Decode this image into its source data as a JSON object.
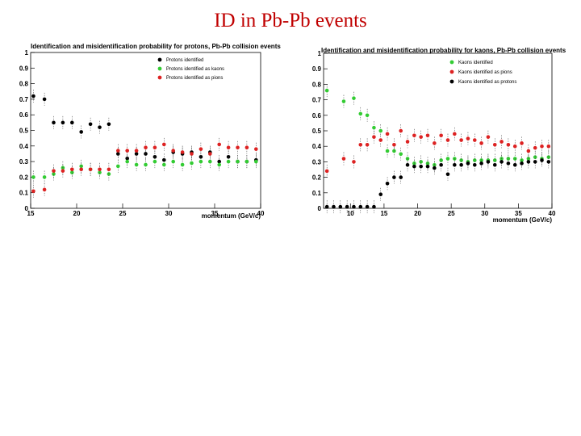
{
  "slide": {
    "title": "ID in  Pb-Pb events"
  },
  "chart_data": [
    {
      "type": "scatter",
      "title": "Identification and misidentification probability for protons, Pb-Pb collision events",
      "xlabel": "momentum (GeV/c)",
      "ylabel": "",
      "xlim": [
        15,
        40
      ],
      "ylim": [
        0,
        1
      ],
      "xticks": [
        15,
        20,
        25,
        30,
        35,
        40
      ],
      "yticks": [
        0,
        0.1,
        0.2,
        0.3,
        0.4,
        0.5,
        0.6,
        0.7,
        0.8,
        0.9,
        1
      ],
      "grid": false,
      "legend_position": "top-right",
      "series": [
        {
          "name": "Protons identified",
          "color": "#000000",
          "x": [
            15.3,
            16.5,
            17.5,
            18.5,
            19.5,
            20.5,
            21.5,
            22.5,
            23.5,
            24.5,
            25.5,
            26.5,
            27.5,
            28.5,
            29.5,
            30.5,
            31.5,
            32.5,
            33.5,
            34.5,
            35.5,
            36.5,
            37.5,
            38.5,
            39.5
          ],
          "y": [
            0.72,
            0.7,
            0.55,
            0.55,
            0.55,
            0.49,
            0.54,
            0.52,
            0.54,
            0.35,
            0.32,
            0.35,
            0.35,
            0.33,
            0.31,
            0.36,
            0.35,
            0.36,
            0.33,
            0.36,
            0.3,
            0.33,
            0.3,
            0.3,
            0.31
          ]
        },
        {
          "name": "Protons identified as kaons",
          "color": "#33cc33",
          "x": [
            15.3,
            16.5,
            17.5,
            18.5,
            19.5,
            20.5,
            21.5,
            22.5,
            23.5,
            24.5,
            25.5,
            26.5,
            27.5,
            28.5,
            29.5,
            30.5,
            31.5,
            32.5,
            33.5,
            34.5,
            35.5,
            36.5,
            37.5,
            38.5,
            39.5
          ],
          "y": [
            0.2,
            0.2,
            0.22,
            0.26,
            0.23,
            0.27,
            0.25,
            0.23,
            0.22,
            0.27,
            0.3,
            0.28,
            0.28,
            0.3,
            0.28,
            0.3,
            0.28,
            0.29,
            0.3,
            0.3,
            0.28,
            0.3,
            0.3,
            0.3,
            0.3
          ]
        },
        {
          "name": "Protons identified as pions",
          "color": "#dd2222",
          "x": [
            15.3,
            16.5,
            17.5,
            18.5,
            19.5,
            20.5,
            21.5,
            22.5,
            23.5,
            24.5,
            25.5,
            26.5,
            27.5,
            28.5,
            29.5,
            30.5,
            31.5,
            32.5,
            33.5,
            34.5,
            35.5,
            36.5,
            37.5,
            38.5,
            39.5
          ],
          "y": [
            0.11,
            0.12,
            0.24,
            0.24,
            0.25,
            0.25,
            0.25,
            0.25,
            0.25,
            0.37,
            0.37,
            0.37,
            0.39,
            0.39,
            0.41,
            0.37,
            0.36,
            0.35,
            0.38,
            0.35,
            0.41,
            0.39,
            0.39,
            0.39,
            0.38
          ]
        }
      ]
    },
    {
      "type": "scatter",
      "title": "Identification and misidentification probability for kaons, Pb-Pb collision events",
      "xlabel": "momentum (GeV/c)",
      "ylabel": "",
      "xlim": [
        6,
        40
      ],
      "ylim": [
        0,
        1
      ],
      "xticks": [
        10,
        15,
        20,
        25,
        30,
        35,
        40
      ],
      "yticks": [
        0,
        0.1,
        0.2,
        0.3,
        0.4,
        0.5,
        0.6,
        0.7,
        0.8,
        0.9,
        1
      ],
      "grid": false,
      "legend_position": "top-right",
      "series": [
        {
          "name": "Kaons identified",
          "color": "#33cc33",
          "x": [
            6.5,
            9,
            10.5,
            11.5,
            12.5,
            13.5,
            14.5,
            15.5,
            16.5,
            17.5,
            18.5,
            19.5,
            20.5,
            21.5,
            22.5,
            23.5,
            24.5,
            25.5,
            26.5,
            27.5,
            28.5,
            29.5,
            30.5,
            31.5,
            32.5,
            33.5,
            34.5,
            35.5,
            36.5,
            37.5,
            38.5,
            39.5
          ],
          "y": [
            0.76,
            0.69,
            0.71,
            0.61,
            0.6,
            0.52,
            0.5,
            0.37,
            0.37,
            0.35,
            0.32,
            0.29,
            0.3,
            0.29,
            0.28,
            0.31,
            0.32,
            0.32,
            0.31,
            0.3,
            0.31,
            0.31,
            0.31,
            0.31,
            0.32,
            0.32,
            0.32,
            0.31,
            0.32,
            0.33,
            0.32,
            0.33
          ]
        },
        {
          "name": "Kaons identified as pions",
          "color": "#dd2222",
          "x": [
            6.5,
            9,
            10.5,
            11.5,
            12.5,
            13.5,
            14.5,
            15.5,
            16.5,
            17.5,
            18.5,
            19.5,
            20.5,
            21.5,
            22.5,
            23.5,
            24.5,
            25.5,
            26.5,
            27.5,
            28.5,
            29.5,
            30.5,
            31.5,
            32.5,
            33.5,
            34.5,
            35.5,
            36.5,
            37.5,
            38.5,
            39.5
          ],
          "y": [
            0.24,
            0.32,
            0.3,
            0.41,
            0.41,
            0.46,
            0.44,
            0.48,
            0.41,
            0.5,
            0.43,
            0.47,
            0.46,
            0.47,
            0.42,
            0.47,
            0.44,
            0.48,
            0.44,
            0.45,
            0.44,
            0.42,
            0.46,
            0.41,
            0.43,
            0.41,
            0.4,
            0.42,
            0.37,
            0.39,
            0.4,
            0.4
          ]
        },
        {
          "name": "Kaons identified as protons",
          "color": "#000000",
          "x": [
            6.5,
            7.5,
            8.5,
            9.5,
            10.5,
            11.5,
            12.5,
            13.5,
            14.5,
            15.5,
            16.5,
            17.5,
            18.5,
            19.5,
            20.5,
            21.5,
            22.5,
            23.5,
            24.5,
            25.5,
            26.5,
            27.5,
            28.5,
            29.5,
            30.5,
            31.5,
            32.5,
            33.5,
            34.5,
            35.5,
            36.5,
            37.5,
            38.5,
            39.5
          ],
          "y": [
            0.01,
            0.01,
            0.01,
            0.01,
            0.01,
            0.01,
            0.01,
            0.01,
            0.09,
            0.16,
            0.2,
            0.2,
            0.28,
            0.27,
            0.27,
            0.27,
            0.26,
            0.28,
            0.22,
            0.28,
            0.28,
            0.29,
            0.28,
            0.29,
            0.3,
            0.28,
            0.3,
            0.29,
            0.28,
            0.29,
            0.3,
            0.3,
            0.31,
            0.3
          ]
        }
      ]
    }
  ]
}
